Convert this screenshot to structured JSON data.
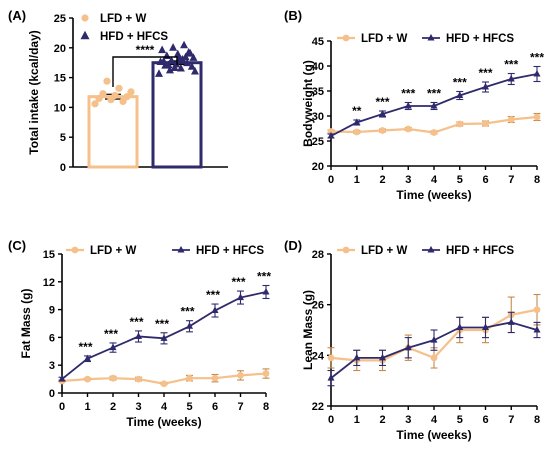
{
  "colors": {
    "lfd": "#F5C08A",
    "hfd": "#2E2A6B",
    "axis": "#000000"
  },
  "chart_data": [
    {
      "id": "A",
      "type": "bar",
      "panel_label": "(A)",
      "ylabel": "Total intake (kcal/day)",
      "ylim": [
        0,
        25
      ],
      "yticks": [
        0,
        5,
        10,
        15,
        20,
        25
      ],
      "legend": [
        "LFD + W",
        "HFD + HFCS"
      ],
      "legend_position": "top-left",
      "significance": "****",
      "bars": [
        {
          "name": "LFD + W",
          "mean": 11.8,
          "sem": 0.4,
          "points": [
            10.6,
            11.0,
            11.3,
            11.5,
            11.8,
            12.0,
            12.3,
            12.6,
            13.2,
            14.4
          ]
        },
        {
          "name": "HFD + HFCS",
          "mean": 17.5,
          "sem": 0.3,
          "points": [
            15.6,
            16.2,
            16.5,
            16.8,
            17.0,
            17.2,
            17.4,
            17.6,
            17.8,
            18.0,
            18.3,
            18.6,
            18.9,
            19.2,
            19.6,
            20.0,
            20.4,
            16.0,
            17.1,
            18.2,
            19.0,
            17.7,
            16.6,
            18.4
          ]
        }
      ]
    },
    {
      "id": "B",
      "type": "line",
      "panel_label": "(B)",
      "xlabel": "Time (weeks)",
      "ylabel": "Bodyweight (g)",
      "xlim": [
        0,
        8
      ],
      "xticks": [
        0,
        1,
        2,
        3,
        4,
        5,
        6,
        7,
        8
      ],
      "ylim": [
        20,
        45
      ],
      "yticks": [
        20,
        25,
        30,
        35,
        40,
        45
      ],
      "legend_position": "top",
      "x": [
        0,
        1,
        2,
        3,
        4,
        5,
        6,
        7,
        8
      ],
      "series": [
        {
          "name": "LFD + W",
          "values": [
            26.9,
            26.8,
            27.1,
            27.4,
            26.7,
            28.4,
            28.5,
            29.3,
            29.8
          ],
          "err": [
            0.3,
            0.3,
            0.3,
            0.3,
            0.3,
            0.4,
            0.5,
            0.6,
            0.7
          ]
        },
        {
          "name": "HFD + HFCS",
          "values": [
            26.0,
            28.7,
            30.4,
            32.0,
            32.0,
            34.1,
            35.8,
            37.4,
            38.4
          ],
          "err": [
            0.4,
            0.5,
            0.6,
            0.7,
            0.7,
            0.8,
            1.0,
            1.1,
            1.5
          ]
        }
      ],
      "significance": [
        {
          "x": 1,
          "text": "**"
        },
        {
          "x": 2,
          "text": "***"
        },
        {
          "x": 3,
          "text": "***"
        },
        {
          "x": 4,
          "text": "***"
        },
        {
          "x": 5,
          "text": "***"
        },
        {
          "x": 6,
          "text": "***"
        },
        {
          "x": 7,
          "text": "***"
        },
        {
          "x": 8,
          "text": "***"
        }
      ]
    },
    {
      "id": "C",
      "type": "line",
      "panel_label": "(C)",
      "xlabel": "Time (weeks)",
      "ylabel": "Fat Mass (g)",
      "xlim": [
        0,
        8
      ],
      "xticks": [
        0,
        1,
        2,
        3,
        4,
        5,
        6,
        7,
        8
      ],
      "ylim": [
        0,
        15
      ],
      "yticks": [
        0,
        3,
        6,
        9,
        12,
        15
      ],
      "legend_position": "top",
      "x": [
        0,
        1,
        2,
        3,
        4,
        5,
        6,
        7,
        8
      ],
      "series": [
        {
          "name": "LFD + W",
          "values": [
            1.3,
            1.5,
            1.6,
            1.5,
            1.0,
            1.6,
            1.6,
            1.9,
            2.1
          ],
          "err": [
            0.1,
            0.1,
            0.2,
            0.2,
            0.1,
            0.3,
            0.4,
            0.5,
            0.5
          ]
        },
        {
          "name": "HFD + HFCS",
          "values": [
            1.5,
            3.7,
            4.9,
            6.1,
            5.9,
            7.2,
            8.9,
            10.3,
            10.9
          ],
          "err": [
            0.2,
            0.3,
            0.5,
            0.6,
            0.6,
            0.6,
            0.7,
            0.7,
            0.7
          ]
        }
      ],
      "significance": [
        {
          "x": 1,
          "text": "***"
        },
        {
          "x": 2,
          "text": "***"
        },
        {
          "x": 3,
          "text": "***"
        },
        {
          "x": 4,
          "text": "***"
        },
        {
          "x": 5,
          "text": "***"
        },
        {
          "x": 6,
          "text": "***"
        },
        {
          "x": 7,
          "text": "***"
        },
        {
          "x": 8,
          "text": "***"
        }
      ]
    },
    {
      "id": "D",
      "type": "line",
      "panel_label": "(D)",
      "xlabel": "Time (weeks)",
      "ylabel": "Lean Mass (g)",
      "xlim": [
        0,
        8
      ],
      "xticks": [
        0,
        1,
        2,
        3,
        4,
        5,
        6,
        7,
        8
      ],
      "ylim": [
        22,
        28
      ],
      "yticks": [
        22,
        24,
        26,
        28
      ],
      "legend_position": "top",
      "x": [
        0,
        1,
        2,
        3,
        4,
        5,
        6,
        7,
        8
      ],
      "series": [
        {
          "name": "LFD + W",
          "values": [
            23.9,
            23.8,
            23.8,
            24.3,
            23.9,
            25.0,
            25.0,
            25.6,
            25.8
          ],
          "err": [
            0.4,
            0.4,
            0.4,
            0.5,
            0.4,
            0.5,
            0.5,
            0.7,
            0.6
          ]
        },
        {
          "name": "HFD + HFCS",
          "values": [
            23.1,
            23.9,
            23.9,
            24.3,
            24.6,
            25.1,
            25.1,
            25.3,
            25.0
          ],
          "err": [
            0.3,
            0.3,
            0.3,
            0.4,
            0.4,
            0.4,
            0.4,
            0.4,
            0.3
          ]
        }
      ],
      "significance": []
    }
  ]
}
